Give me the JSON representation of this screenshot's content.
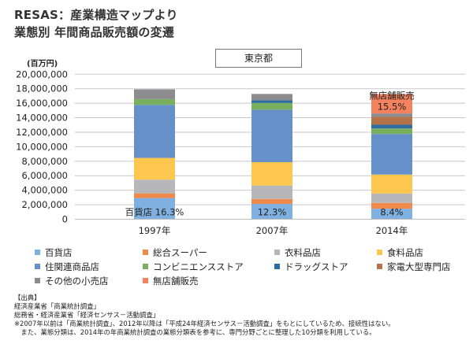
{
  "title_line1": "RESAS：産業構造マップより",
  "title_line2": "業態別 年間商品販売額の変遷",
  "region": "東京都",
  "chart_data": {
    "type": "bar",
    "stacked": true,
    "title": "業態別 年間商品販売額の変遷",
    "ylabel": "(百万円)",
    "xlabel": "",
    "ylim": [
      0,
      20000000
    ],
    "yticks": [
      0,
      2000000,
      4000000,
      6000000,
      8000000,
      10000000,
      12000000,
      14000000,
      16000000,
      18000000,
      20000000
    ],
    "ytick_labels": [
      "0",
      "2,000,000",
      "4,000,000",
      "6,000,000",
      "8,000,000",
      "10,000,000",
      "12,000,000",
      "14,000,000",
      "16,000,000",
      "18,000,000",
      "20,000,000"
    ],
    "grid": true,
    "categories": [
      "1997年",
      "2007年",
      "2014年"
    ],
    "series": [
      {
        "name": "百貨店",
        "color": "#7fb0e0",
        "values": [
          2920000,
          2120000,
          1450000
        ]
      },
      {
        "name": "総合スーパー",
        "color": "#ef8a4c",
        "values": [
          650000,
          680000,
          800000
        ]
      },
      {
        "name": "衣料品店",
        "color": "#b7b7b9",
        "values": [
          1890000,
          1850000,
          1300000
        ]
      },
      {
        "name": "食料品店",
        "color": "#fdc64e",
        "values": [
          3000000,
          3220000,
          2610000
        ]
      },
      {
        "name": "住関連商品店",
        "color": "#6690c9",
        "values": [
          7320000,
          7240000,
          5600000
        ]
      },
      {
        "name": "コンビニエンスストア",
        "color": "#79ae5e",
        "values": [
          790000,
          930000,
          760000
        ]
      },
      {
        "name": "ドラッグストア",
        "color": "#2e6da4",
        "values": [
          0,
          370000,
          510000
        ]
      },
      {
        "name": "家電大型専門店",
        "color": "#b5734a",
        "values": [
          0,
          0,
          1090000
        ]
      },
      {
        "name": "その他の小売店",
        "color": "#8c8c8e",
        "values": [
          1340000,
          870000,
          470000
        ]
      },
      {
        "name": "無店舗販売",
        "color": "#f4825e",
        "values": [
          0,
          0,
          2670000
        ]
      }
    ],
    "annotations": [
      {
        "bar": 0,
        "series": "百貨店",
        "text": "百貨店 16.3%"
      },
      {
        "bar": 1,
        "series": "百貨店",
        "text": "12.3%"
      },
      {
        "bar": 2,
        "series": "百貨店",
        "text": "8.4%"
      },
      {
        "bar": 2,
        "series": "無店舗販売",
        "text": "15.5%",
        "label_above": "無店舗販売"
      }
    ],
    "legend_position": "bottom"
  },
  "legend_rows": [
    [
      "百貨店",
      "総合スーパー",
      "衣料品店",
      "食料品店"
    ],
    [
      "住関連商品店",
      "コンビニエンスストア",
      "ドラッグストア",
      "家電大型専門店"
    ],
    [
      "その他の小売店",
      "無店舗販売"
    ]
  ],
  "source": {
    "heading": "【出典】",
    "lines": [
      "経済産業省「商業統計調査」",
      "総務省・経済産業省「経済センサス－活動調査」",
      "※2007年以前は「商業統計調査」、2012年以降は「平成24年経済センサス－活動調査」をもとにしているため、接続性はない。",
      "　また、業態分類は、2014年の年商業統計調査の業態分類表を参考に、専門分野ごとに整理した10分類を利用している。"
    ]
  }
}
